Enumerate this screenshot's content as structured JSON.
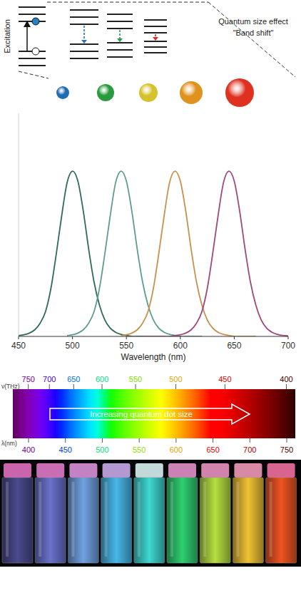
{
  "diagram": {
    "excitation_label": "Excitation",
    "effect_label": "Quantum size effect",
    "band_shift_label": "\"Band shift\""
  },
  "chart_data": {
    "type": "line",
    "x_label": "Wavelength (nm)",
    "x": [
      450,
      455,
      460,
      465,
      470,
      475,
      480,
      485,
      490,
      495,
      500,
      505,
      510,
      515,
      520,
      525,
      530,
      535,
      540,
      545,
      550,
      555,
      560,
      565,
      570,
      575,
      580,
      585,
      590,
      595,
      600,
      605,
      610,
      615,
      620,
      625,
      630,
      635,
      640,
      645,
      650,
      655,
      660,
      665,
      670,
      675,
      680,
      685,
      690,
      695,
      700
    ],
    "series": [
      {
        "color": "#2e6a5c",
        "values": [
          0.005,
          0.01,
          0.02,
          0.04,
          0.08,
          0.15,
          0.29,
          0.5,
          0.73,
          0.93,
          1.0,
          0.94,
          0.76,
          0.53,
          0.33,
          0.19,
          0.1,
          0.05,
          0.025,
          0.012,
          0.006,
          0,
          0,
          0,
          0,
          0,
          null,
          null,
          null,
          null,
          null,
          null,
          null,
          null,
          null,
          null,
          null,
          null,
          null,
          null,
          null,
          null,
          null,
          null,
          null,
          null,
          null,
          null,
          null,
          null,
          null
        ]
      },
      {
        "color": "#5e9c90",
        "values": [
          null,
          null,
          null,
          null,
          null,
          null,
          null,
          null,
          null,
          0.005,
          0.01,
          0.02,
          0.04,
          0.08,
          0.15,
          0.29,
          0.5,
          0.73,
          0.93,
          1.0,
          0.94,
          0.76,
          0.53,
          0.33,
          0.19,
          0.1,
          0.05,
          0.025,
          0.012,
          0.006,
          0,
          0,
          0,
          0,
          0,
          null,
          null,
          null,
          null,
          null,
          null,
          null,
          null,
          null,
          null,
          null,
          null,
          null,
          null,
          null,
          null
        ]
      },
      {
        "color": "#c8914e",
        "values": [
          null,
          null,
          null,
          null,
          null,
          null,
          null,
          null,
          null,
          null,
          null,
          null,
          null,
          null,
          null,
          null,
          null,
          null,
          null,
          0.005,
          0.01,
          0.02,
          0.04,
          0.08,
          0.15,
          0.29,
          0.5,
          0.73,
          0.93,
          1.0,
          0.94,
          0.76,
          0.53,
          0.33,
          0.19,
          0.1,
          0.05,
          0.025,
          0.012,
          0.006,
          0,
          0,
          0,
          0,
          0,
          null,
          null,
          null,
          null,
          null,
          null
        ]
      },
      {
        "color": "#a0487c",
        "values": [
          null,
          null,
          null,
          null,
          null,
          null,
          null,
          null,
          null,
          null,
          null,
          null,
          null,
          null,
          null,
          null,
          null,
          null,
          null,
          null,
          null,
          null,
          null,
          0,
          0,
          0,
          0,
          0,
          0,
          0.005,
          0.01,
          0.02,
          0.04,
          0.08,
          0.15,
          0.29,
          0.5,
          0.73,
          0.93,
          1.0,
          0.94,
          0.76,
          0.53,
          0.33,
          0.19,
          0.1,
          0.05,
          0.025,
          0.012,
          0.006,
          0.003
        ]
      }
    ],
    "xlim": [
      450,
      700
    ],
    "xticks": [
      450,
      500,
      550,
      600,
      650,
      700
    ],
    "ylim": [
      0,
      1.35
    ],
    "yticks": [],
    "tick_labels": "x",
    "grid": false
  },
  "spectrum": {
    "frequency_label": "ν(THz)",
    "frequency_ticks": [
      750,
      700,
      650,
      600,
      550,
      500,
      450,
      400
    ],
    "wavelength_label": "λ(nm)",
    "wavelength_ticks": [
      400,
      450,
      500,
      550,
      600,
      650,
      700,
      750
    ],
    "wavelength_lim": [
      400,
      750
    ],
    "arrow_label": "Increasing quantum dot size"
  }
}
